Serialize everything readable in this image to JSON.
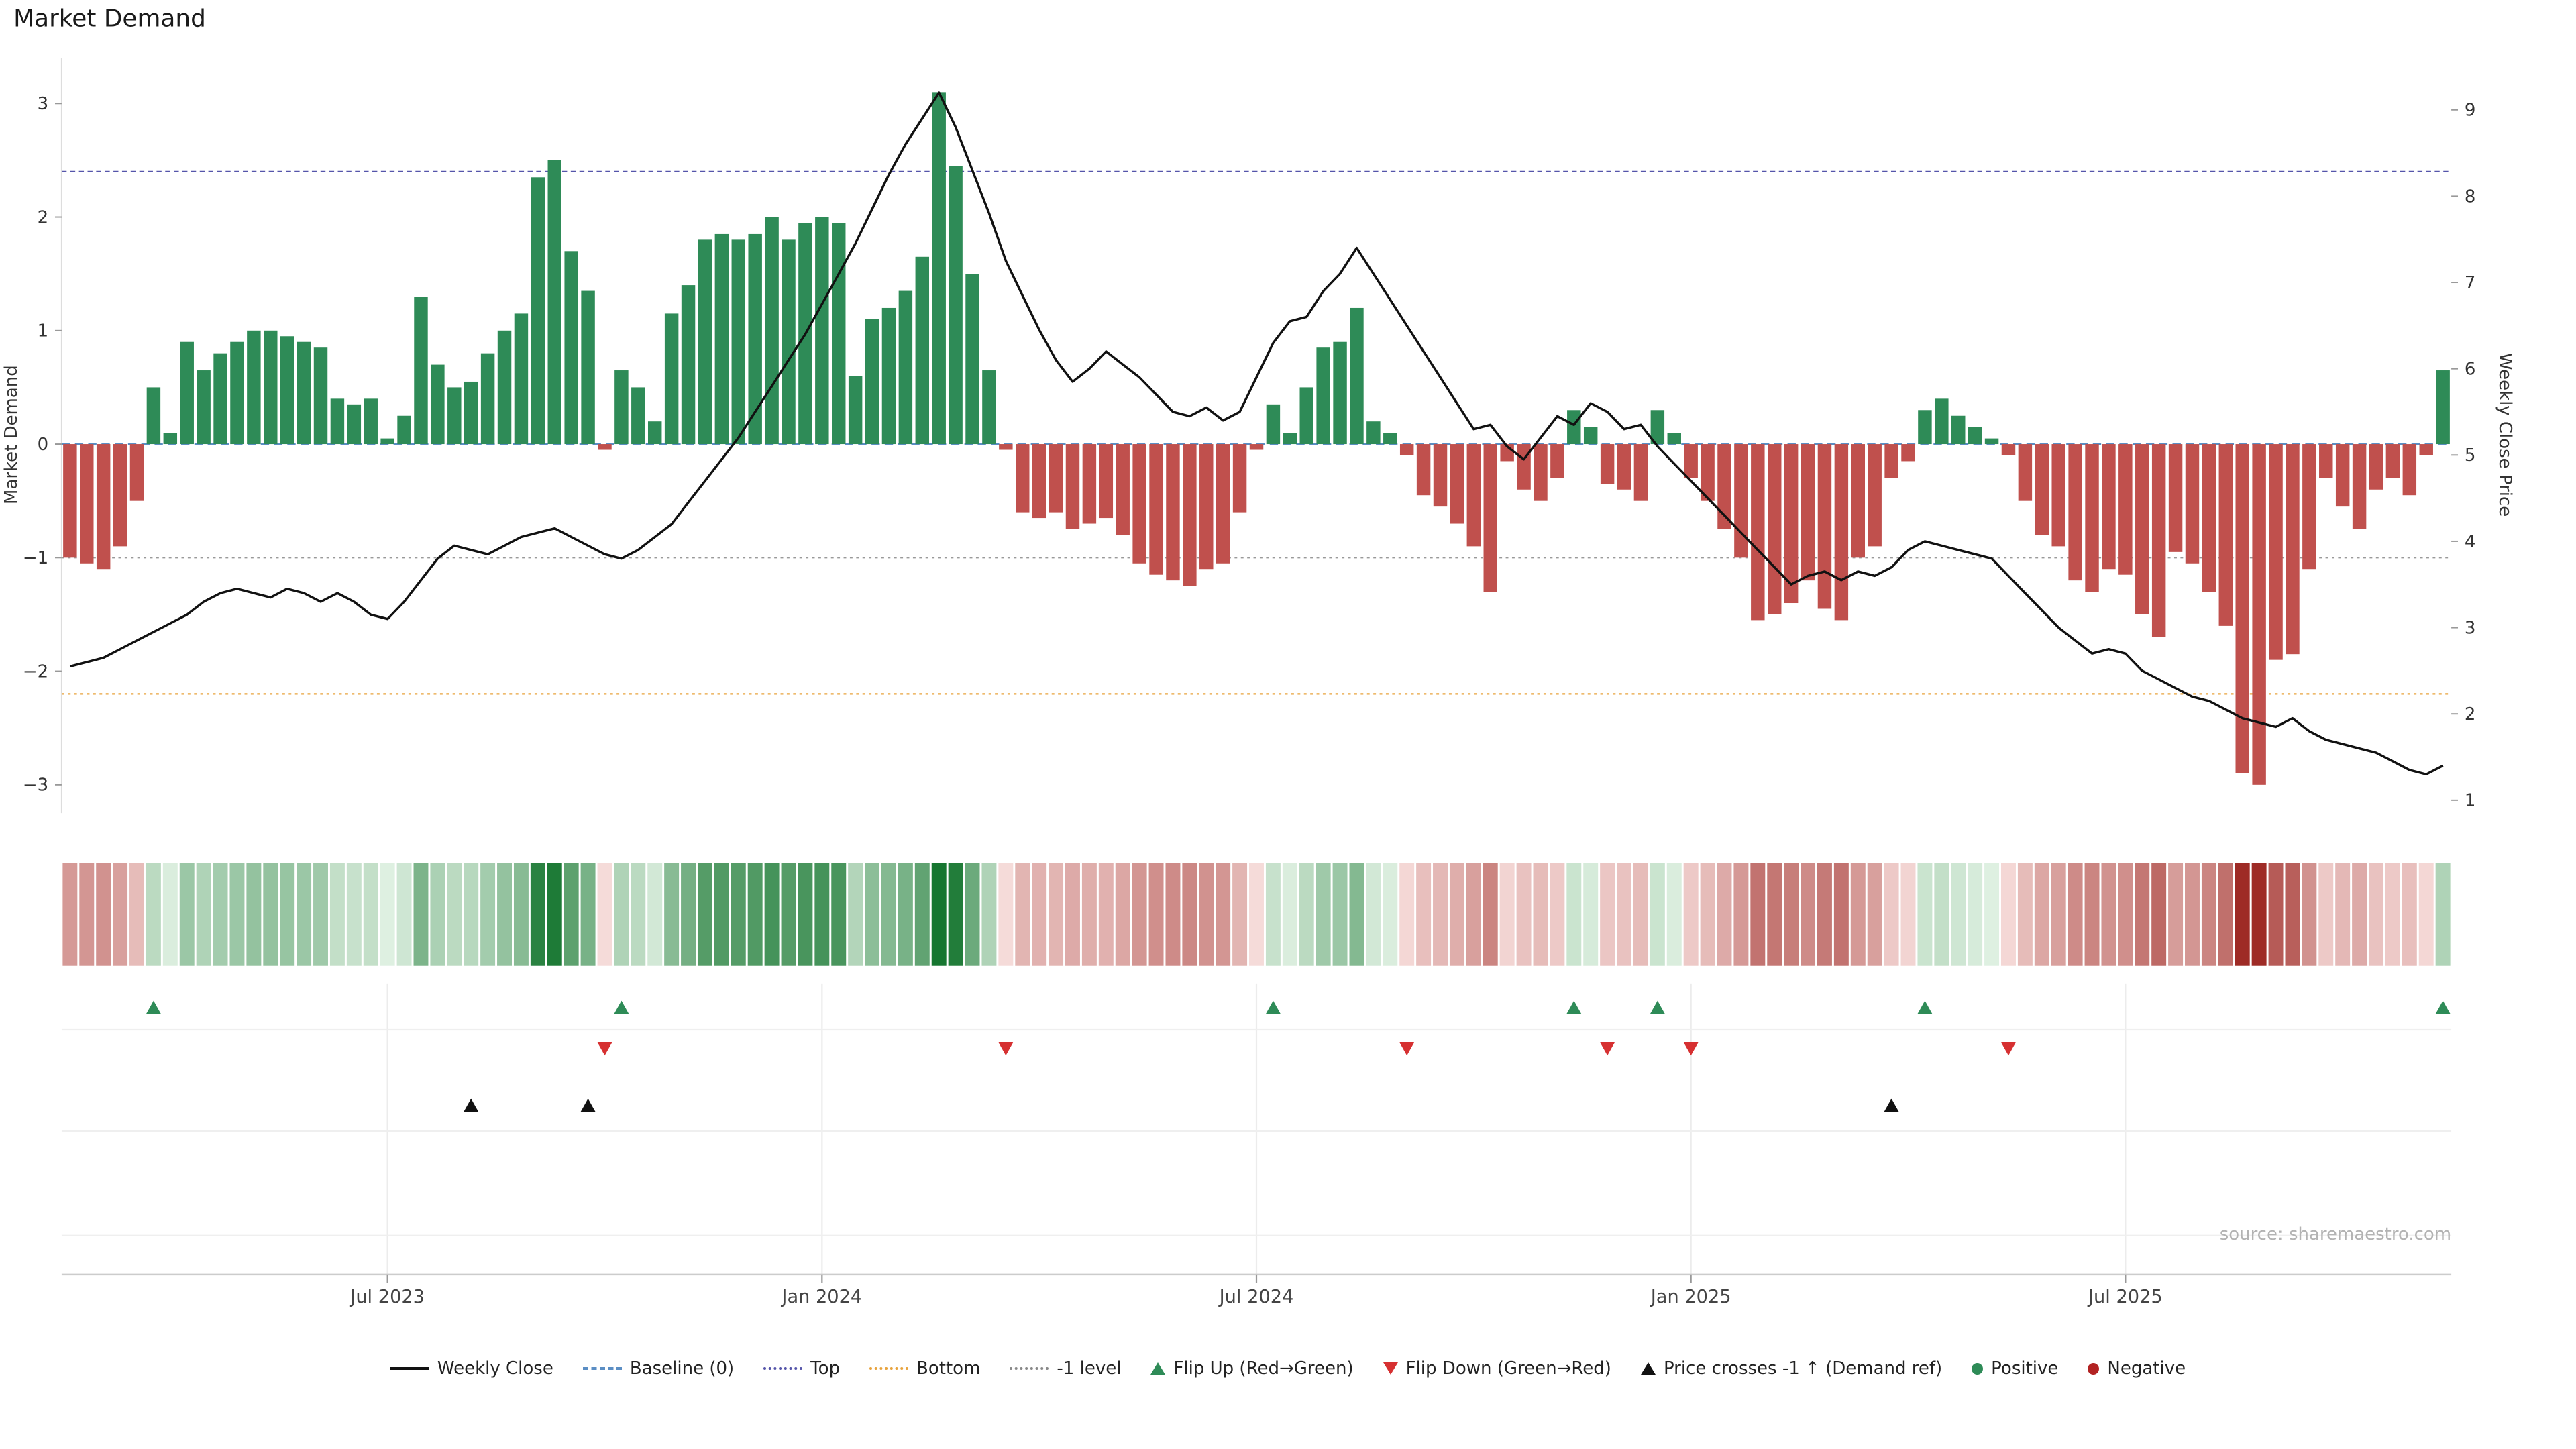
{
  "title": "Market Demand",
  "source": "source: sharemaestro.com",
  "axes": {
    "left_label": "Market Demand",
    "right_label": "Weekly Close Price",
    "left_ticks": [
      3,
      2,
      1,
      0,
      -1,
      -2,
      -3
    ],
    "right_ticks": [
      9,
      8,
      7,
      6,
      5,
      4,
      3,
      2,
      1
    ],
    "left_range": [
      -3.25,
      3.4
    ],
    "right_range": [
      0.85,
      9.6
    ],
    "x_ticks": [
      "Jul 2023",
      "Jan 2024",
      "Jul 2024",
      "Jan 2025",
      "Jul 2025"
    ],
    "x_tick_weeks": [
      19,
      45,
      71,
      97,
      123
    ]
  },
  "chart_data": {
    "type": "bar+line",
    "title": "Market Demand",
    "ylabel_left": "Market Demand",
    "ylabel_right": "Weekly Close Price",
    "weeks": 143,
    "demand": [
      -1.0,
      -1.05,
      -1.1,
      -0.9,
      -0.5,
      0.5,
      0.1,
      0.9,
      0.65,
      0.8,
      0.9,
      1.0,
      1.0,
      0.95,
      0.9,
      0.85,
      0.4,
      0.35,
      0.4,
      0.05,
      0.25,
      1.3,
      0.7,
      0.5,
      0.55,
      0.8,
      1.0,
      1.15,
      2.35,
      2.5,
      1.7,
      1.35,
      -0.05,
      0.65,
      0.5,
      0.2,
      1.15,
      1.4,
      1.8,
      1.85,
      1.8,
      1.85,
      2.0,
      1.8,
      1.95,
      2.0,
      1.95,
      0.6,
      1.1,
      1.2,
      1.35,
      1.65,
      3.1,
      2.45,
      1.5,
      0.65,
      -0.05,
      -0.6,
      -0.65,
      -0.6,
      -0.75,
      -0.7,
      -0.65,
      -0.8,
      -1.05,
      -1.15,
      -1.2,
      -1.25,
      -1.1,
      -1.05,
      -0.6,
      -0.05,
      0.35,
      0.1,
      0.5,
      0.85,
      0.9,
      1.2,
      0.2,
      0.1,
      -0.1,
      -0.45,
      -0.55,
      -0.7,
      -0.9,
      -1.3,
      -0.15,
      -0.4,
      -0.5,
      -0.3,
      0.3,
      0.15,
      -0.35,
      -0.4,
      -0.5,
      0.3,
      0.1,
      -0.3,
      -0.5,
      -0.75,
      -1.0,
      -1.55,
      -1.5,
      -1.4,
      -1.2,
      -1.45,
      -1.55,
      -1.0,
      -0.9,
      -0.3,
      -0.15,
      0.3,
      0.4,
      0.25,
      0.15,
      0.05,
      -0.1,
      -0.5,
      -0.8,
      -0.9,
      -1.2,
      -1.3,
      -1.1,
      -1.15,
      -1.5,
      -1.7,
      -0.95,
      -1.05,
      -1.3,
      -1.6,
      -2.9,
      -3.0,
      -1.9,
      -1.85,
      -1.1,
      -0.3,
      -0.55,
      -0.75,
      -0.4,
      -0.3,
      -0.45,
      -0.1,
      0.65
    ],
    "price": [
      2.55,
      2.6,
      2.65,
      2.75,
      2.85,
      2.95,
      3.05,
      3.15,
      3.3,
      3.4,
      3.45,
      3.4,
      3.35,
      3.45,
      3.4,
      3.3,
      3.4,
      3.3,
      3.15,
      3.1,
      3.3,
      3.55,
      3.8,
      3.95,
      3.9,
      3.85,
      3.95,
      4.05,
      4.1,
      4.15,
      4.05,
      3.95,
      3.85,
      3.8,
      3.9,
      4.05,
      4.2,
      4.45,
      4.7,
      4.95,
      5.2,
      5.5,
      5.8,
      6.1,
      6.4,
      6.75,
      7.1,
      7.45,
      7.85,
      8.25,
      8.6,
      8.9,
      9.2,
      8.8,
      8.3,
      7.8,
      7.25,
      6.85,
      6.45,
      6.1,
      5.85,
      6.0,
      6.2,
      6.05,
      5.9,
      5.7,
      5.5,
      5.45,
      5.55,
      5.4,
      5.5,
      5.9,
      6.3,
      6.55,
      6.6,
      6.9,
      7.1,
      7.4,
      7.1,
      6.8,
      6.5,
      6.2,
      5.9,
      5.6,
      5.3,
      5.35,
      5.1,
      4.95,
      5.2,
      5.45,
      5.35,
      5.6,
      5.5,
      5.3,
      5.35,
      5.1,
      4.9,
      4.7,
      4.5,
      4.3,
      4.1,
      3.9,
      3.7,
      3.5,
      3.6,
      3.65,
      3.55,
      3.65,
      3.6,
      3.7,
      3.9,
      4.0,
      3.95,
      3.9,
      3.85,
      3.8,
      3.6,
      3.4,
      3.2,
      3.0,
      2.85,
      2.7,
      2.75,
      2.7,
      2.5,
      2.4,
      2.3,
      2.2,
      2.15,
      2.05,
      1.95,
      1.9,
      1.85,
      1.95,
      1.8,
      1.7,
      1.65,
      1.6,
      1.55,
      1.45,
      1.35,
      1.3,
      1.4
    ],
    "ref_lines": {
      "baseline": {
        "value": 0,
        "color": "#5b8ec4",
        "label": "Baseline (0)"
      },
      "top": {
        "value": 2.4,
        "color": "#5555aa",
        "label": "Top"
      },
      "bottom": {
        "value": -2.2,
        "color": "#e8a33d",
        "label": "Bottom"
      },
      "minus1": {
        "value": -1,
        "color": "#999999",
        "label": "-1 level"
      }
    },
    "markers": {
      "flip_up_weeks": [
        5,
        33,
        72,
        90,
        95,
        111,
        142
      ],
      "flip_down_weeks": [
        32,
        56,
        80,
        92,
        97,
        116
      ],
      "price_cross_weeks": [
        24,
        31,
        109
      ]
    },
    "colors": {
      "positive": "#2e8b57",
      "negative": "#c0504d",
      "line": "#111111",
      "flip_up": "#2e8b57",
      "flip_down": "#d63031",
      "price_cross": "#111111",
      "heat_pos_light": [
        226,
        242,
        228
      ],
      "heat_pos_dark": [
        22,
        118,
        48
      ],
      "heat_neg_light": [
        247,
        222,
        220
      ],
      "heat_neg_dark": [
        158,
        43,
        38
      ]
    }
  },
  "legend": [
    {
      "label": "Weekly Close",
      "type": "line",
      "color": "#111111"
    },
    {
      "label": "Baseline (0)",
      "type": "dash",
      "color": "#5b8ec4"
    },
    {
      "label": "Top",
      "type": "dots",
      "color": "#5555aa"
    },
    {
      "label": "Bottom",
      "type": "dots",
      "color": "#e8a33d"
    },
    {
      "label": "-1 level",
      "type": "dots",
      "color": "#888888"
    },
    {
      "label": "Flip Up (Red→Green)",
      "type": "tri-up",
      "color": "#2e8b57"
    },
    {
      "label": "Flip Down (Green→Red)",
      "type": "tri-down",
      "color": "#d63031"
    },
    {
      "label": "Price crosses -1 ↑ (Demand ref)",
      "type": "tri-up",
      "color": "#111111"
    },
    {
      "label": "Positive",
      "type": "dot",
      "color": "#2e8b57"
    },
    {
      "label": "Negative",
      "type": "dot",
      "color": "#b22222"
    }
  ]
}
